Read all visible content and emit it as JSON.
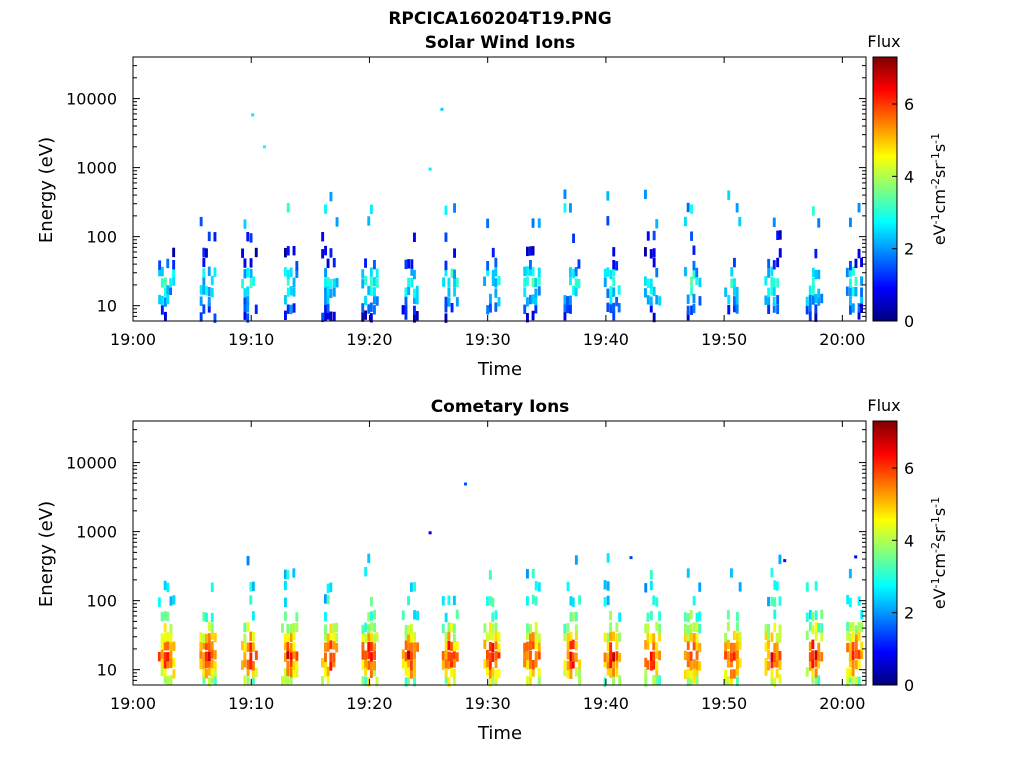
{
  "figure_title": "RPCICA160204T19.PNG",
  "colors": {
    "colormap": [
      "#00007f",
      "#0000ff",
      "#007fff",
      "#00ffff",
      "#7fff7f",
      "#ffff00",
      "#ff7f00",
      "#ff0000",
      "#7f0000"
    ],
    "background": "#ffffff",
    "axes": "#000000"
  },
  "chart_data": [
    {
      "type": "heatmap",
      "title": "Solar Wind Ions",
      "xlabel": "Time",
      "ylabel": "Energy (eV)",
      "x_ticks": [
        "19:00",
        "19:10",
        "19:20",
        "19:30",
        "19:40",
        "19:50",
        "20:00"
      ],
      "x_range": [
        "19:00",
        "20:02"
      ],
      "y_scale": "log",
      "y_ticks": [
        "10",
        "100",
        "1000",
        "10000"
      ],
      "y_range": [
        6,
        40000
      ],
      "colorbar": {
        "title": "Flux",
        "ticks": [
          "0",
          "2",
          "4",
          "6"
        ],
        "range": [
          0,
          7.3
        ],
        "label": "eV-1cm-2sr-1s-1"
      },
      "sweep_minutes": [
        2.6,
        6.1,
        9.6,
        13.0,
        16.4,
        19.8,
        23.2,
        26.6,
        30.1,
        33.5,
        36.9,
        40.3,
        43.7,
        47.1,
        50.5,
        53.9,
        57.4,
        60.8
      ],
      "profile": {
        "energies": [
          7,
          9,
          12,
          16,
          22,
          30,
          40,
          60,
          100,
          160,
          250,
          400
        ],
        "flux": [
          1.0,
          1.5,
          2.2,
          2.6,
          2.9,
          2.6,
          1.2,
          0.8,
          1.0,
          2.2,
          2.5,
          2.3
        ],
        "coverage": [
          0.3,
          0.45,
          0.55,
          0.65,
          0.6,
          0.55,
          0.4,
          0.2,
          0.15,
          0.1,
          0.12,
          0.07
        ]
      },
      "isolated_points": [
        {
          "t": "19:10",
          "e": 5800,
          "v": 2.6
        },
        {
          "t": "19:11",
          "e": 2000,
          "v": 2.8
        },
        {
          "t": "19:26",
          "e": 7000,
          "v": 2.4
        },
        {
          "t": "19:25",
          "e": 950,
          "v": 2.6
        }
      ]
    },
    {
      "type": "heatmap",
      "title": "Cometary Ions",
      "xlabel": "Time",
      "ylabel": "Energy (eV)",
      "x_ticks": [
        "19:00",
        "19:10",
        "19:20",
        "19:30",
        "19:40",
        "19:50",
        "20:00"
      ],
      "x_range": [
        "19:00",
        "20:02"
      ],
      "y_scale": "log",
      "y_ticks": [
        "10",
        "100",
        "1000",
        "10000"
      ],
      "y_range": [
        6,
        40000
      ],
      "colorbar": {
        "title": "Flux",
        "ticks": [
          "0",
          "2",
          "4",
          "6"
        ],
        "range": [
          0,
          7.3
        ],
        "label": "eV-1cm-2sr-1s-1"
      },
      "sweep_minutes": [
        2.6,
        6.1,
        9.6,
        13.0,
        16.4,
        19.8,
        23.2,
        26.6,
        30.1,
        33.5,
        36.9,
        40.3,
        43.7,
        47.1,
        50.5,
        53.9,
        57.4,
        60.8
      ],
      "profile": {
        "energies": [
          7,
          9,
          12,
          16,
          22,
          30,
          40,
          60,
          100,
          160,
          250,
          400
        ],
        "flux": [
          4.2,
          5.0,
          5.8,
          6.3,
          5.8,
          4.9,
          4.2,
          3.4,
          3.0,
          2.8,
          2.6,
          2.4
        ],
        "coverage": [
          0.55,
          0.75,
          0.9,
          0.95,
          0.9,
          0.85,
          0.75,
          0.45,
          0.35,
          0.25,
          0.12,
          0.06
        ]
      },
      "isolated_points": [
        {
          "t": "19:28",
          "e": 4900,
          "v": 1.5
        },
        {
          "t": "19:25",
          "e": 960,
          "v": 0.8
        },
        {
          "t": "19:42",
          "e": 420,
          "v": 1.4
        },
        {
          "t": "20:01",
          "e": 430,
          "v": 0.9
        },
        {
          "t": "19:55",
          "e": 380,
          "v": 1.0
        }
      ]
    }
  ]
}
